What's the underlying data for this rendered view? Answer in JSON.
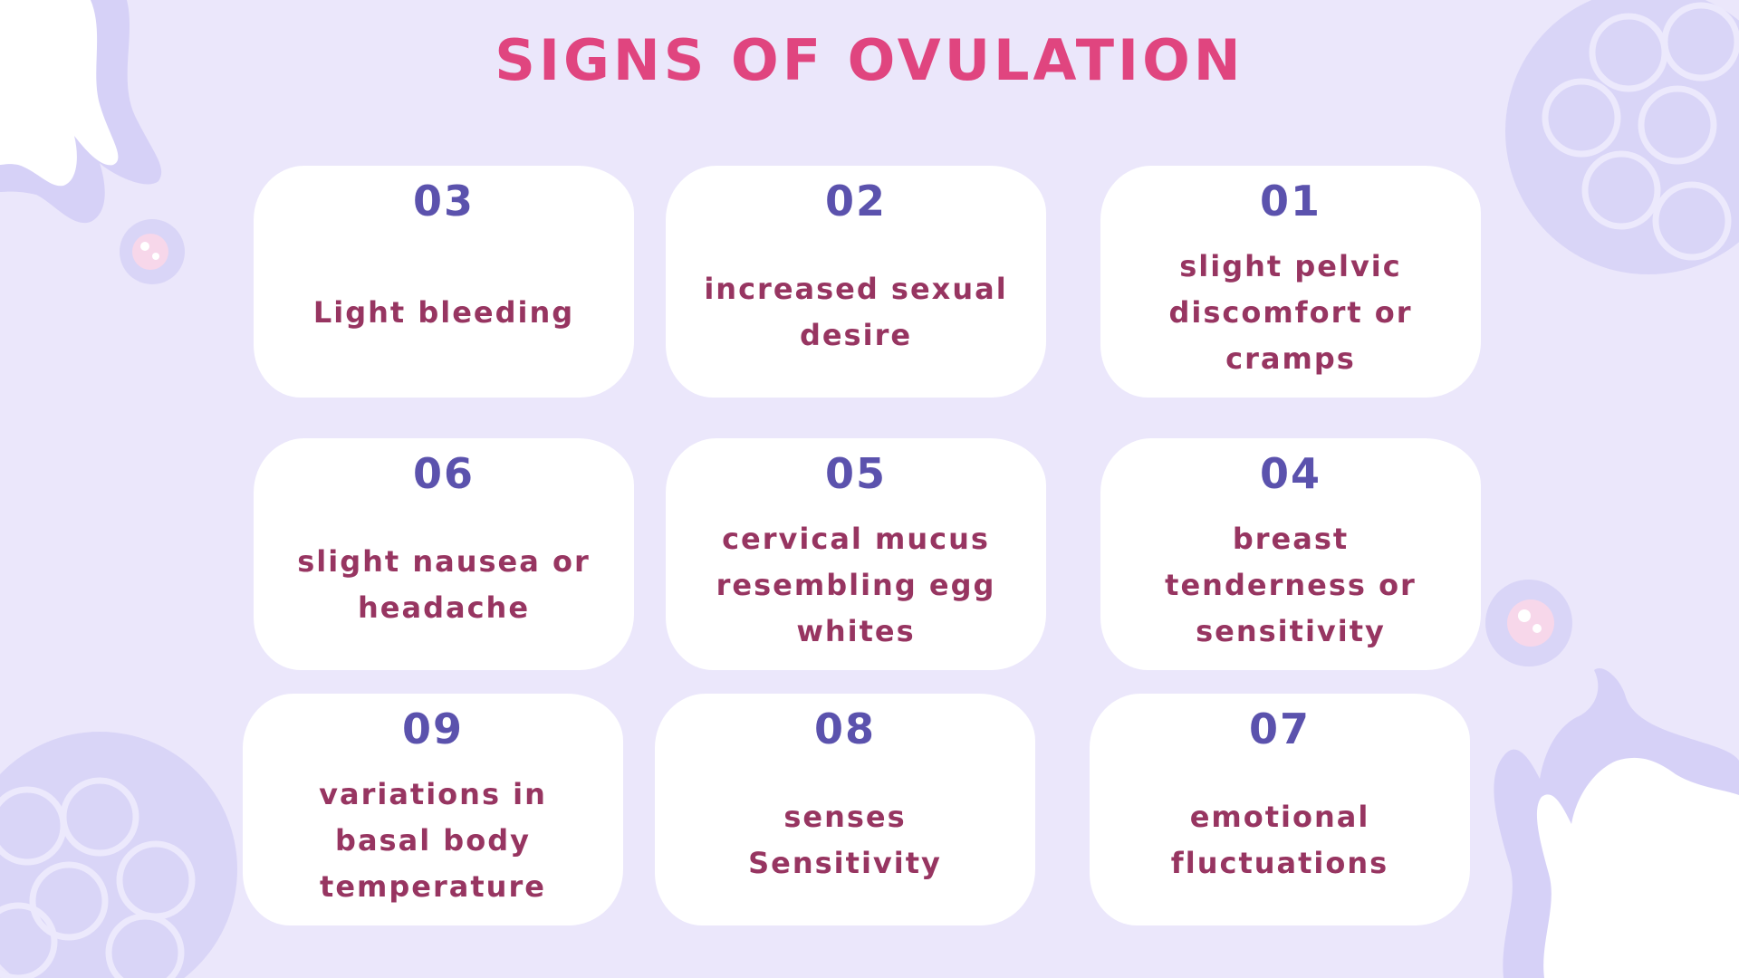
{
  "title": "SIGNS OF OVULATION",
  "colors": {
    "background": "#ebe7fb",
    "title": "#e0457f",
    "number": "#5b52ad",
    "text": "#973561",
    "card": "#ffffff",
    "decoration": "#d9d5f7"
  },
  "cards": [
    {
      "number": "03",
      "text": "Light bleeding"
    },
    {
      "number": "02",
      "text": "increased sexual desire"
    },
    {
      "number": "01",
      "text": "slight pelvic discomfort or cramps"
    },
    {
      "number": "06",
      "text": "slight nausea or headache"
    },
    {
      "number": "05",
      "text": "cervical mucus resembling egg whites"
    },
    {
      "number": "04",
      "text": "breast tenderness or sensitivity"
    },
    {
      "number": "09",
      "text": "variations in basal body temperature"
    },
    {
      "number": "08",
      "text": "senses Sensitivity"
    },
    {
      "number": "07",
      "text": "emotional fluctuations"
    }
  ]
}
